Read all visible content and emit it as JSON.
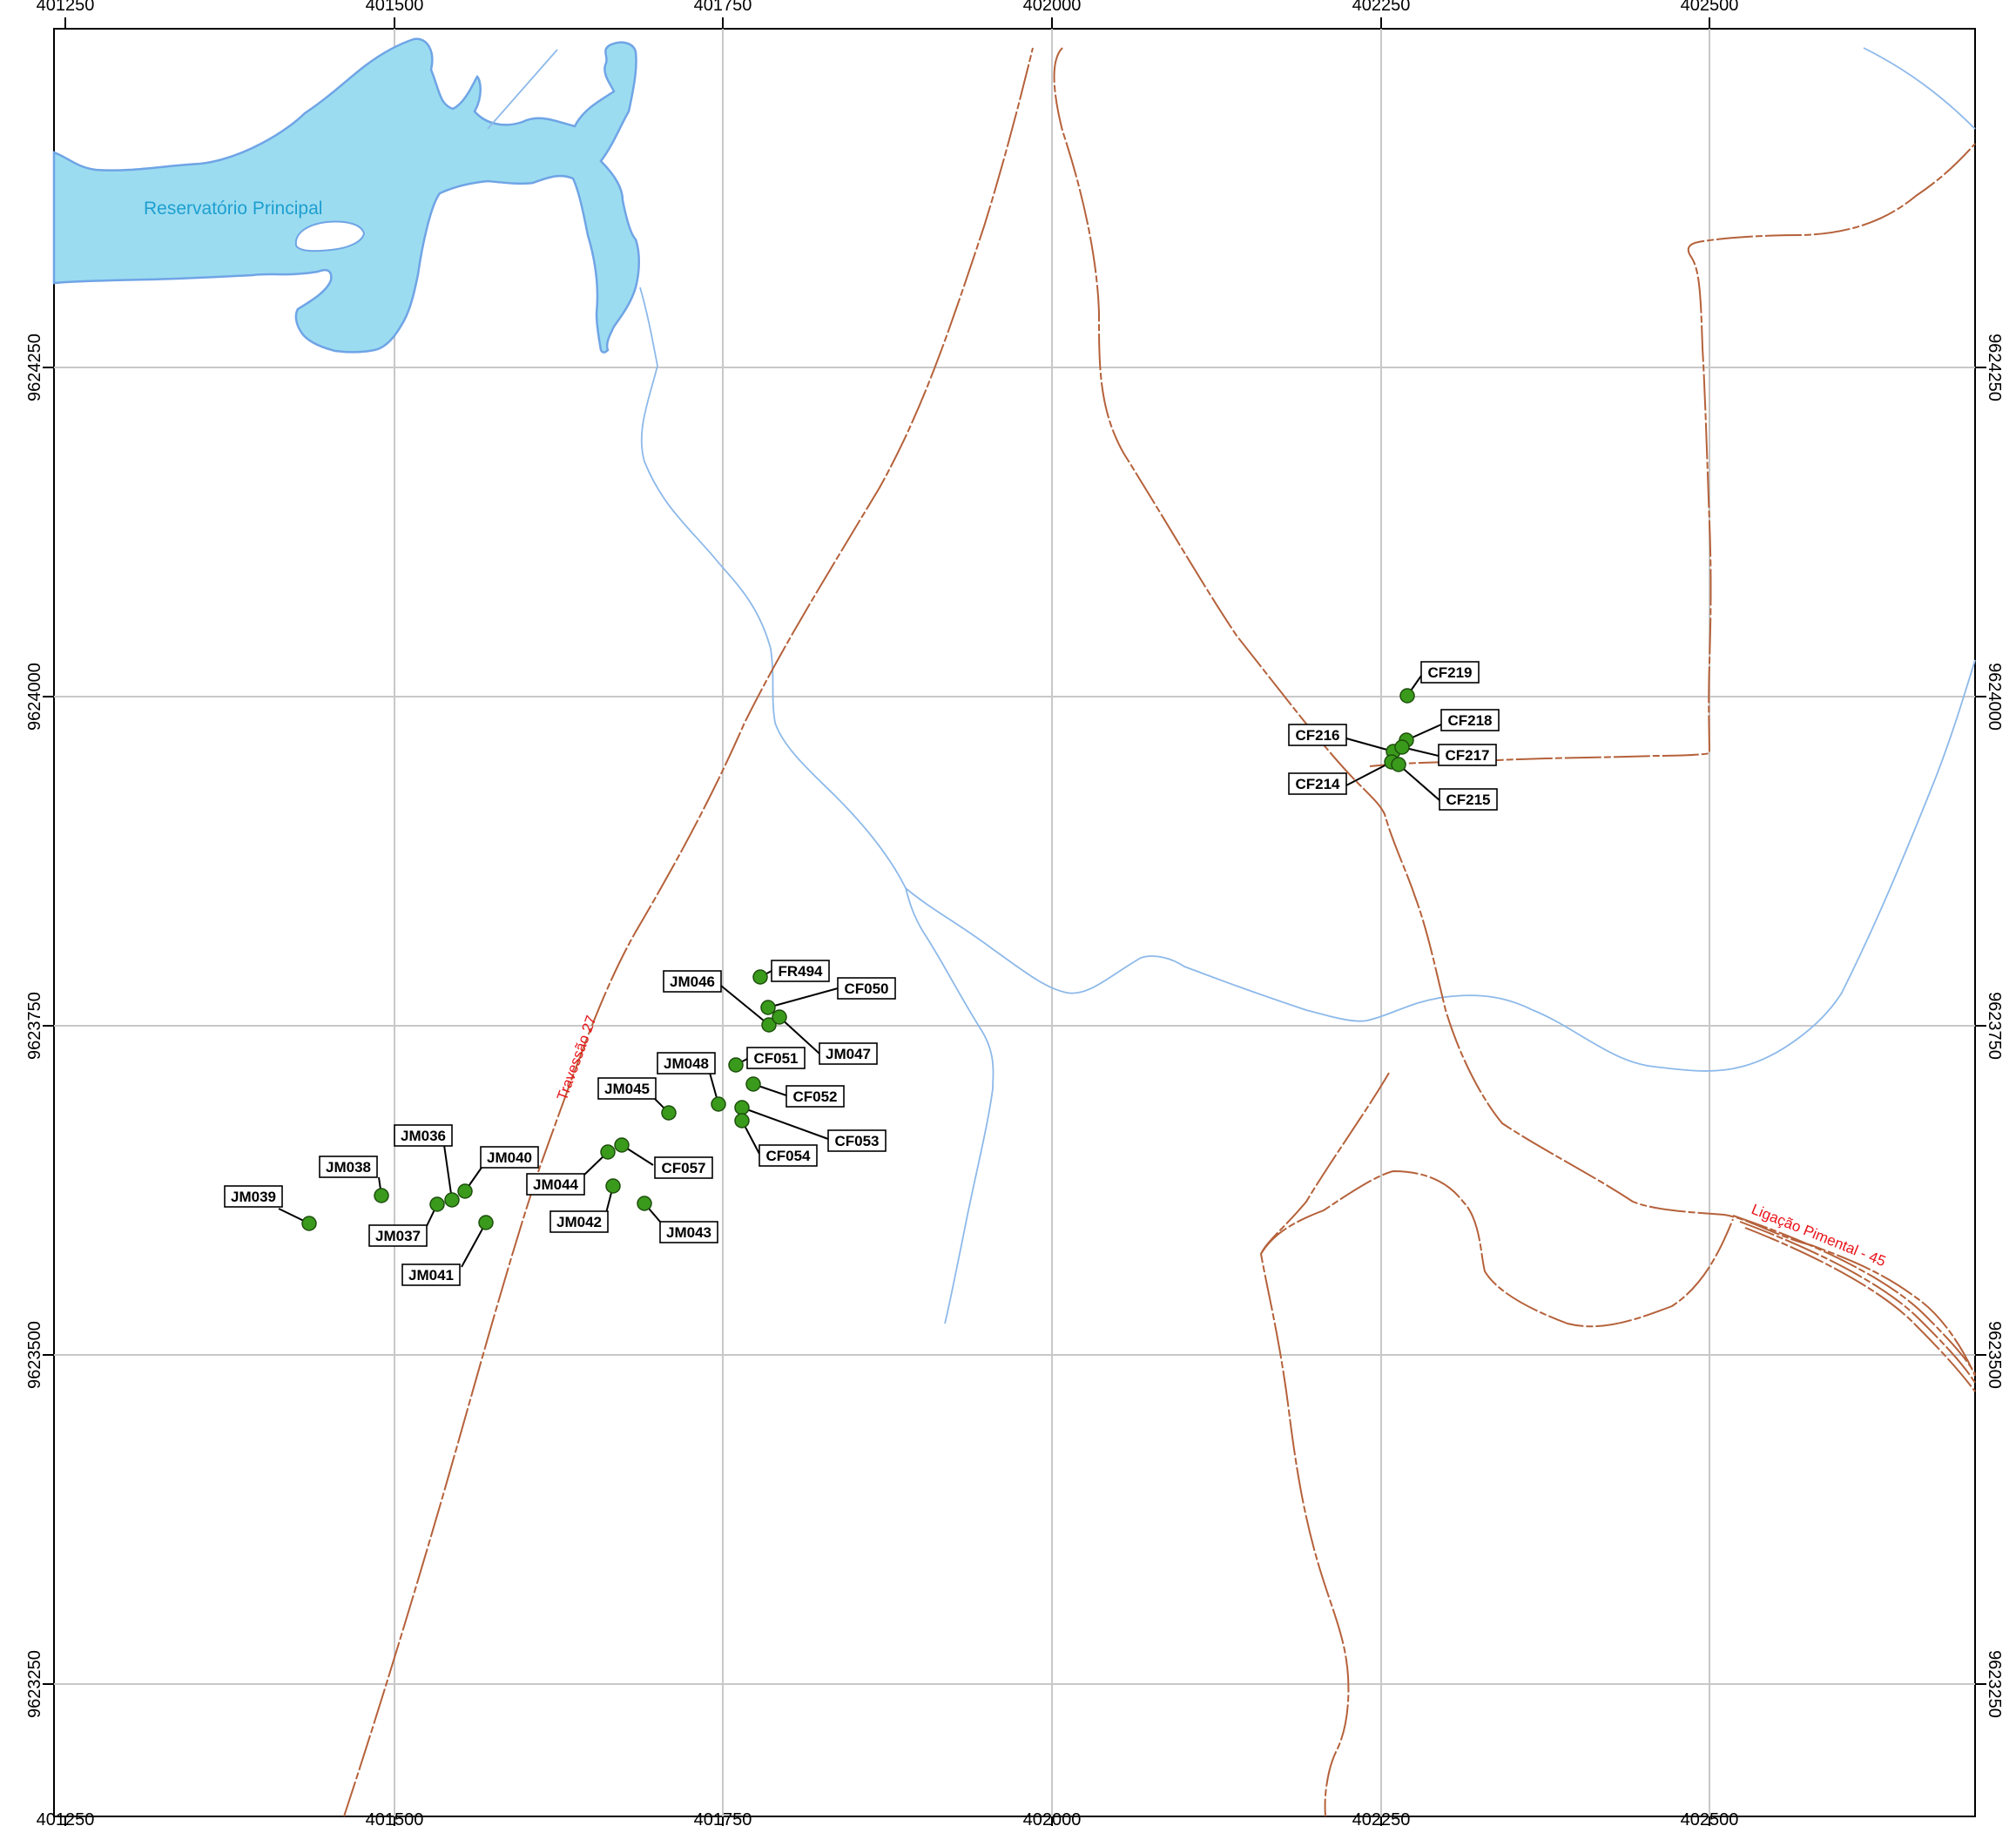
{
  "map": {
    "x_ticks": [
      "401250",
      "401500",
      "401750",
      "402000",
      "402250",
      "402500"
    ],
    "y_ticks": [
      "9624250",
      "9624000",
      "9623750",
      "9623500",
      "9623250"
    ],
    "labels": {
      "reservoir": "Reservatório Principal",
      "road_1": "Travessão 27",
      "road_2": "Ligação Pimental - 45"
    },
    "colors": {
      "water_fill": "#9cdcf0",
      "water_line": "#8db9ea",
      "road": "#b5613a",
      "point": "#3a9a1c",
      "grid": "#c8c8c8",
      "road_label": "#e8141a",
      "water_label": "#1d9fd0"
    },
    "points": [
      {
        "id": "JM039"
      },
      {
        "id": "JM038"
      },
      {
        "id": "JM036"
      },
      {
        "id": "JM040"
      },
      {
        "id": "JM037"
      },
      {
        "id": "JM041"
      },
      {
        "id": "JM044"
      },
      {
        "id": "CF057"
      },
      {
        "id": "JM042"
      },
      {
        "id": "JM043"
      },
      {
        "id": "JM045"
      },
      {
        "id": "JM048"
      },
      {
        "id": "CF051"
      },
      {
        "id": "CF052"
      },
      {
        "id": "CF053"
      },
      {
        "id": "CF054"
      },
      {
        "id": "JM046"
      },
      {
        "id": "FR494"
      },
      {
        "id": "CF050"
      },
      {
        "id": "JM047"
      },
      {
        "id": "CF219"
      },
      {
        "id": "CF218"
      },
      {
        "id": "CF216"
      },
      {
        "id": "CF217"
      },
      {
        "id": "CF214"
      },
      {
        "id": "CF215"
      }
    ]
  }
}
